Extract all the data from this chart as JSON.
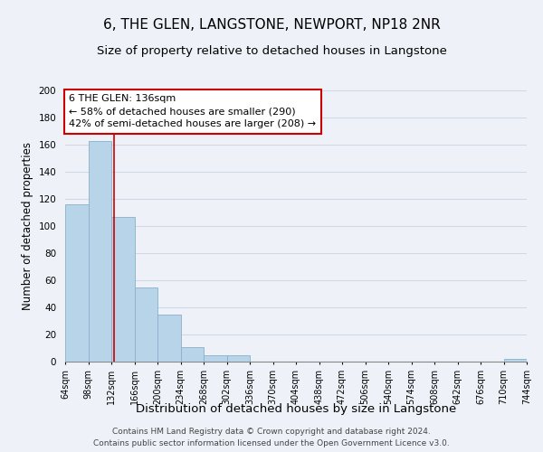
{
  "title": "6, THE GLEN, LANGSTONE, NEWPORT, NP18 2NR",
  "subtitle": "Size of property relative to detached houses in Langstone",
  "xlabel": "Distribution of detached houses by size in Langstone",
  "ylabel": "Number of detached properties",
  "bin_edges": [
    64,
    98,
    132,
    166,
    200,
    234,
    268,
    302,
    336,
    370,
    404,
    438,
    472,
    506,
    540,
    574,
    608,
    642,
    676,
    710,
    744
  ],
  "bar_heights": [
    116,
    163,
    107,
    55,
    35,
    11,
    5,
    5,
    0,
    0,
    0,
    0,
    0,
    0,
    0,
    0,
    0,
    0,
    0,
    2
  ],
  "bar_color": "#b8d4e8",
  "bar_edge_color": "#8ab0cc",
  "property_size": 136,
  "vline_color": "#cc0000",
  "annotation_line1": "6 THE GLEN: 136sqm",
  "annotation_line2": "← 58% of detached houses are smaller (290)",
  "annotation_line3": "42% of semi-detached houses are larger (208) →",
  "annotation_box_color": "#ffffff",
  "annotation_box_edge_color": "#cc0000",
  "ylim": [
    0,
    200
  ],
  "yticks": [
    0,
    20,
    40,
    60,
    80,
    100,
    120,
    140,
    160,
    180,
    200
  ],
  "grid_color": "#d0d8e8",
  "background_color": "#eef2f8",
  "plot_bg_color": "#eef2f8",
  "footer_line1": "Contains HM Land Registry data © Crown copyright and database right 2024.",
  "footer_line2": "Contains public sector information licensed under the Open Government Licence v3.0.",
  "title_fontsize": 11,
  "subtitle_fontsize": 9.5,
  "xlabel_fontsize": 9.5,
  "ylabel_fontsize": 8.5,
  "tick_label_fontsize": 7,
  "annotation_fontsize": 8,
  "footer_fontsize": 6.5
}
